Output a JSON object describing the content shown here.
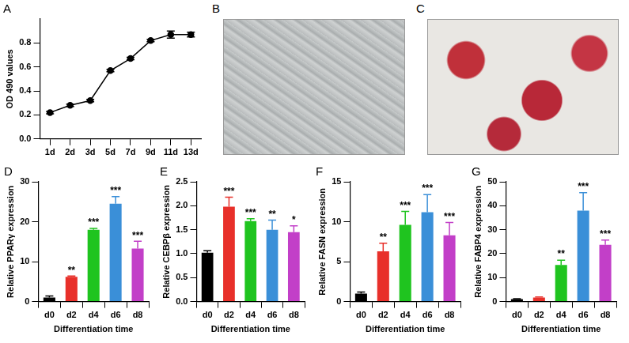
{
  "chart_data": [
    {
      "type": "line",
      "panel": "A",
      "categories": [
        "1d",
        "2d",
        "3d",
        "5d",
        "7d",
        "9d",
        "11d",
        "13d"
      ],
      "values": [
        0.22,
        0.28,
        0.32,
        0.57,
        0.67,
        0.82,
        0.87,
        0.87
      ],
      "errors": [
        0.01,
        0.01,
        0.01,
        0.01,
        0.01,
        0.01,
        0.03,
        0.02
      ],
      "color": "#000000",
      "marker": "circle",
      "line_style": "solid",
      "y_label": "OD 490 values",
      "ylim": [
        0,
        1.0
      ],
      "yticks": [
        {
          "value": 0,
          "label": "0.0"
        },
        0.2,
        0.4,
        0.6,
        0.8
      ],
      "grid": false
    },
    {
      "type": "bar",
      "panel": "D",
      "categories": [
        "d0",
        "d2",
        "d4",
        "d6",
        "d8"
      ],
      "values": [
        1.0,
        6.2,
        18.0,
        24.5,
        13.3
      ],
      "errors": [
        0.4,
        0.2,
        0.3,
        1.8,
        1.8
      ],
      "significance": [
        null,
        "**",
        "***",
        "***",
        "***"
      ],
      "colors": [
        "#000000",
        "#e8302a",
        "#1fc41f",
        "#3a8fd8",
        "#c23fc8"
      ],
      "x_label": "Differentiation time",
      "y_label": "Relative PPARγ expression",
      "ylim": [
        0,
        30
      ],
      "yticks": [
        0,
        10,
        20,
        30
      ],
      "grid": false
    },
    {
      "type": "bar",
      "panel": "E",
      "categories": [
        "d0",
        "d2",
        "d4",
        "d6",
        "d8"
      ],
      "values": [
        1.02,
        1.98,
        1.68,
        1.5,
        1.45
      ],
      "errors": [
        0.04,
        0.2,
        0.05,
        0.2,
        0.13
      ],
      "significance": [
        null,
        "***",
        "***",
        "**",
        "*"
      ],
      "colors": [
        "#000000",
        "#e8302a",
        "#1fc41f",
        "#3a8fd8",
        "#c23fc8"
      ],
      "x_label": "Differentiation time",
      "y_label": "Relative CEBPβ expression",
      "ylim": [
        0,
        2.5
      ],
      "yticks": [
        {
          "value": 0,
          "label": "0.0"
        },
        0.5,
        {
          "value": 1,
          "label": "1.0"
        },
        1.5,
        {
          "value": 2,
          "label": "2.0"
        },
        2.5
      ],
      "grid": false
    },
    {
      "type": "bar",
      "panel": "F",
      "categories": [
        "d0",
        "d2",
        "d4",
        "d6",
        "d8"
      ],
      "values": [
        1.0,
        6.3,
        9.6,
        11.2,
        8.3
      ],
      "errors": [
        0.2,
        1.0,
        1.7,
        2.2,
        1.6
      ],
      "significance": [
        null,
        "**",
        "***",
        "***",
        "***"
      ],
      "colors": [
        "#000000",
        "#e8302a",
        "#1fc41f",
        "#3a8fd8",
        "#c23fc8"
      ],
      "x_label": "Differentiation time",
      "y_label": "Relative FASN expression",
      "ylim": [
        0,
        15
      ],
      "yticks": [
        0,
        5,
        10,
        15
      ],
      "grid": false
    },
    {
      "type": "bar",
      "panel": "G",
      "categories": [
        "d0",
        "d2",
        "d4",
        "d6",
        "d8"
      ],
      "values": [
        1.0,
        1.7,
        15.3,
        38.0,
        23.7
      ],
      "errors": [
        0.2,
        0.2,
        2.0,
        7.5,
        2.0
      ],
      "significance": [
        null,
        null,
        "**",
        "***",
        "***"
      ],
      "colors": [
        "#000000",
        "#e8302a",
        "#1fc41f",
        "#3a8fd8",
        "#c23fc8"
      ],
      "x_label": "Differentiation time",
      "y_label": "Relative FABP4 expression",
      "ylim": [
        0,
        50
      ],
      "yticks": [
        0,
        10,
        20,
        30,
        40,
        50
      ],
      "grid": false
    }
  ],
  "images": [
    {
      "panel": "B"
    },
    {
      "panel": "C"
    }
  ]
}
